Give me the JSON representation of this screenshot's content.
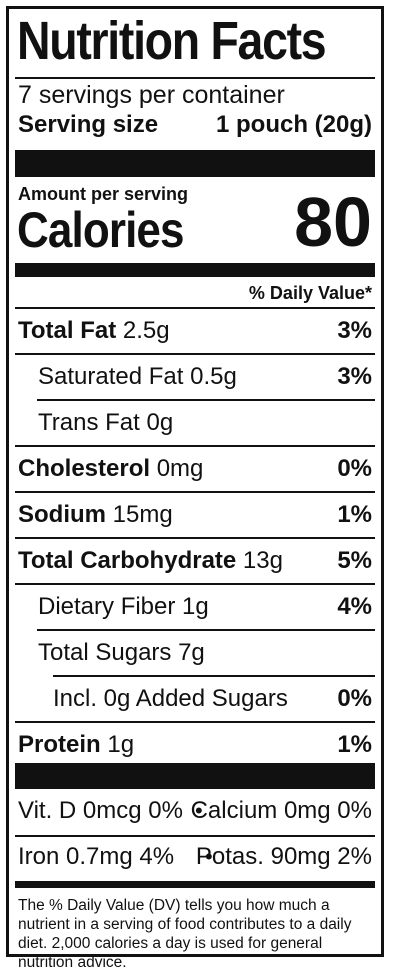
{
  "title": "Nutrition Facts",
  "servings_per_container": "7 servings per container",
  "serving_size_label": "Serving size",
  "serving_size_value": "1 pouch (20g)",
  "amount_per_serving": "Amount per serving",
  "calories_label": "Calories",
  "calories_value": "80",
  "daily_value_header": "% Daily Value*",
  "nutrients": [
    {
      "name": "Total Fat",
      "amount": "2.5g",
      "dv": "3%"
    },
    {
      "name": "Saturated Fat",
      "amount": "0.5g",
      "dv": "3%"
    },
    {
      "name": "Trans Fat",
      "amount": "0g",
      "dv": ""
    },
    {
      "name": "Cholesterol",
      "amount": "0mg",
      "dv": "0%"
    },
    {
      "name": "Sodium",
      "amount": "15mg",
      "dv": "1%"
    },
    {
      "name": "Total Carbohydrate",
      "amount": "13g",
      "dv": "5%"
    },
    {
      "name": "Dietary Fiber",
      "amount": "1g",
      "dv": "4%"
    },
    {
      "name": "Total Sugars",
      "amount": "7g",
      "dv": ""
    },
    {
      "name": "Incl. 0g Added Sugars",
      "amount": "",
      "dv": "0%"
    },
    {
      "name": "Protein",
      "amount": "1g",
      "dv": "1%"
    }
  ],
  "vitamins": {
    "row1_left": "Vit. D 0mcg 0%",
    "row1_right": "Calcium 0mg 0%",
    "row2_left": "Iron 0.7mg 4%",
    "row2_right": "Potas. 90mg 2%",
    "separator": "•"
  },
  "footnote": "The % Daily Value (DV) tells you how much a nutrient in a serving of food contributes to a daily diet. 2,000 calories a day is used for general nutrition advice."
}
